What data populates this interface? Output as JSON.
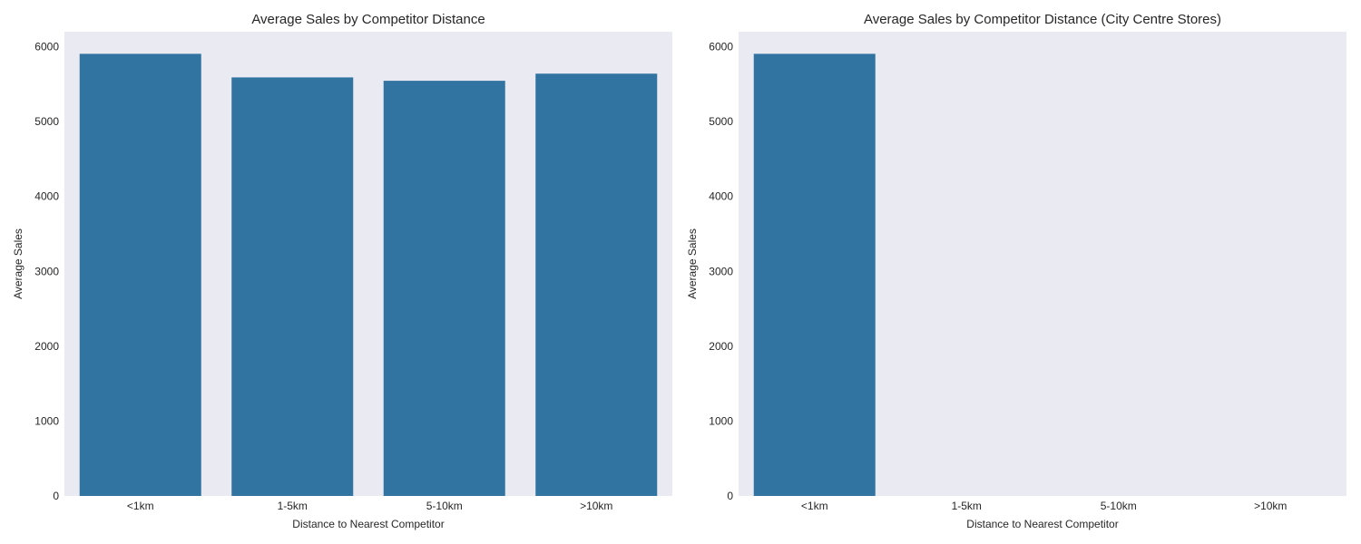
{
  "chart_data": [
    {
      "type": "bar",
      "title": "Average Sales by Competitor Distance",
      "xlabel": "Distance to Nearest Competitor",
      "ylabel": "Average Sales",
      "categories": [
        "<1km",
        "1-5km",
        "5-10km",
        ">10km"
      ],
      "values": [
        5905,
        5590,
        5545,
        5640
      ],
      "ylim": [
        0,
        6200
      ],
      "yticks": [
        0,
        1000,
        2000,
        3000,
        4000,
        5000,
        6000
      ],
      "grid": false,
      "bar_color": "#3274a1",
      "plot_background": "#eaeaf2"
    },
    {
      "type": "bar",
      "title": "Average Sales by Competitor Distance (City Centre Stores)",
      "xlabel": "Distance to Nearest Competitor",
      "ylabel": "Average Sales",
      "categories": [
        "<1km",
        "1-5km",
        "5-10km",
        ">10km"
      ],
      "values": [
        5905,
        null,
        null,
        null
      ],
      "ylim": [
        0,
        6200
      ],
      "yticks": [
        0,
        1000,
        2000,
        3000,
        4000,
        5000,
        6000
      ],
      "grid": false,
      "bar_color": "#3274a1",
      "plot_background": "#eaeaf2"
    }
  ]
}
